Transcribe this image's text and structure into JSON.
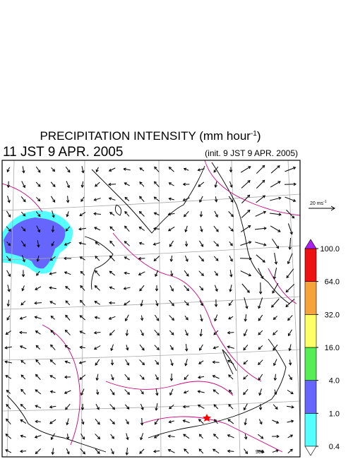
{
  "header": {
    "title": "PRECIPITATION INTENSITY (mm hour",
    "title_sup": "-1",
    "title_end": ")",
    "valid_time": "11 JST 9 APR. 2005",
    "init_time": "(init. 9 JST 9 APR. 2005)"
  },
  "wind_scale": {
    "label": "20 ms",
    "sup": "-1"
  },
  "colorbar": {
    "levels": [
      0.4,
      {
        "value": 1,
        "label": "1.0"
      },
      {
        "value": 4,
        "label": "4.0"
      },
      {
        "value": 16,
        "label": "16.0"
      },
      {
        "value": 32,
        "label": "32.0"
      },
      {
        "value": 64,
        "label": "64.0"
      },
      {
        "value": 100,
        "label": "100.0"
      }
    ],
    "colors": [
      "#55ffff",
      "#6666ff",
      "#55ee55",
      "#ffff66",
      "#f7a33c",
      "#ee1111"
    ],
    "over_color": "#aa22ee",
    "under_color": "#ffffff"
  },
  "map": {
    "pressure_label": "988"
  }
}
